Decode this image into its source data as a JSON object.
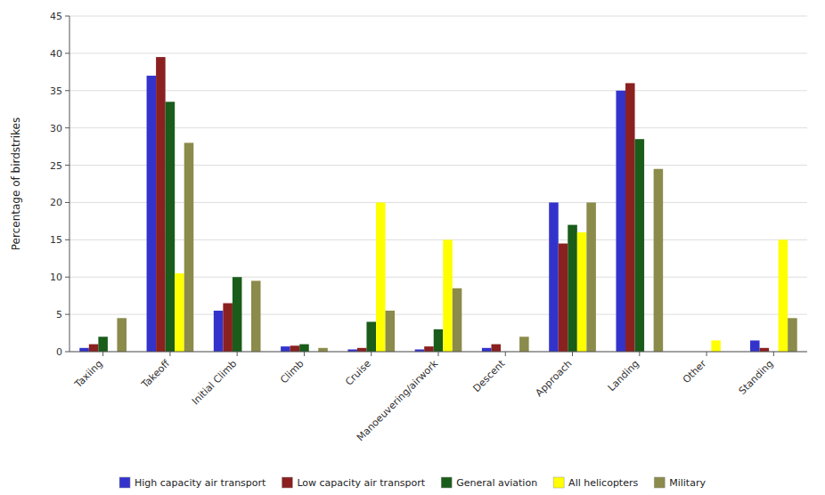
{
  "chart_data": {
    "type": "bar",
    "categories": [
      "Taxiing",
      "Takeoff",
      "Initial Climb",
      "Climb",
      "Cruise",
      "Manoeuvering/airwork",
      "Descent",
      "Approach",
      "Landing",
      "Other",
      "Standing"
    ],
    "series": [
      {
        "name": "High capacity air transport",
        "color": "#3333CC",
        "values": [
          0.5,
          37,
          5.5,
          0.7,
          0.3,
          0.3,
          0.5,
          20,
          35,
          0,
          1.5
        ]
      },
      {
        "name": "Low capacity air transport",
        "color": "#8B2020",
        "values": [
          1,
          39.5,
          6.5,
          0.8,
          0.5,
          0.7,
          1,
          14.5,
          36,
          0,
          0.5
        ]
      },
      {
        "name": "General aviation",
        "color": "#1A5C1A",
        "values": [
          2,
          33.5,
          10,
          1,
          4,
          3,
          0,
          17,
          28.5,
          0,
          0
        ]
      },
      {
        "name": "All helicopters",
        "color": "#FFFF00",
        "values": [
          0,
          10.5,
          0,
          0,
          20,
          15,
          0,
          16,
          0,
          1.5,
          15
        ]
      },
      {
        "name": "Military",
        "color": "#8B8B4B",
        "values": [
          4.5,
          28,
          9.5,
          0.5,
          5.5,
          8.5,
          2,
          20,
          24.5,
          0,
          4.5
        ]
      }
    ],
    "ylabel": "Percentage of birdstrikes",
    "ylim": [
      0,
      45
    ],
    "yticks": [
      0,
      5,
      10,
      15,
      20,
      25,
      30,
      35,
      40,
      45
    ],
    "grid": true,
    "legend": "bottom"
  }
}
